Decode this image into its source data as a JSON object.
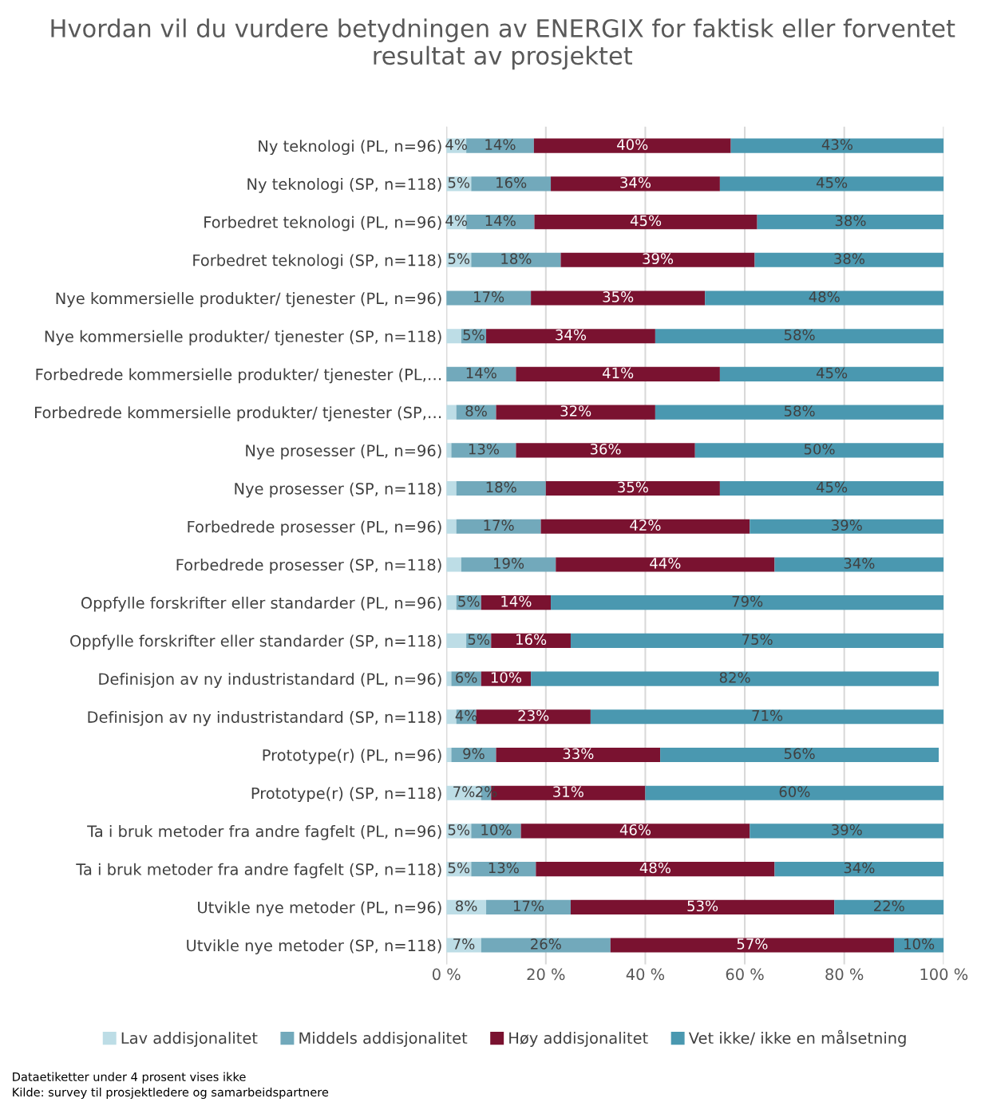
{
  "chart_data": {
    "type": "bar",
    "orientation": "horizontal",
    "stacked": true,
    "title": "Hvordan vil du vurdere betydningen av ENERGIX for faktisk eller forventet resultat av prosjektet",
    "categories": [
      "Ny teknologi (PL, n=96)",
      "Ny teknologi (SP, n=118)",
      "Forbedret teknologi (PL, n=96)",
      "Forbedret teknologi (SP, n=118)",
      "Nye kommersielle produkter/ tjenester (PL, n=96)",
      "Nye kommersielle produkter/ tjenester (SP, n=118)",
      "Forbedrede kommersielle produkter/ tjenester (PL,…",
      "Forbedrede kommersielle produkter/ tjenester (SP,…",
      "Nye prosesser (PL, n=96)",
      "Nye prosesser (SP, n=118)",
      "Forbedrede prosesser (PL, n=96)",
      "Forbedrede prosesser (SP, n=118)",
      "Oppfylle forskrifter eller standarder (PL, n=96)",
      "Oppfylle forskrifter eller standarder (SP, n=118)",
      "Definisjon av ny industristandard (PL, n=96)",
      "Definisjon av ny industristandard (SP, n=118)",
      "Prototype(r) (PL, n=96)",
      "Prototype(r) (SP, n=118)",
      "Ta i bruk metoder fra andre fagfelt (PL, n=96)",
      "Ta i bruk metoder fra andre fagfelt (SP, n=118)",
      "Utvikle nye metoder (PL, n=96)",
      "Utvikle nye metoder (SP, n=118)"
    ],
    "series": [
      {
        "name": "Lav addisjonalitet",
        "color": "#bddde6",
        "values": [
          4,
          5,
          4,
          5,
          0,
          3,
          0,
          2,
          1,
          2,
          2,
          3,
          2,
          4,
          1,
          2,
          1,
          7,
          5,
          5,
          8,
          7
        ],
        "value_labels": [
          "4%",
          "5%",
          "4%",
          "5%",
          null,
          null,
          null,
          null,
          null,
          null,
          null,
          null,
          null,
          null,
          null,
          null,
          null,
          "7%",
          "5%",
          "5%",
          "8%",
          "7%"
        ]
      },
      {
        "name": "Middels addisjonalitet",
        "color": "#72a9bb",
        "values": [
          13.6,
          16,
          13.7,
          18,
          17,
          5,
          14,
          8,
          13,
          18,
          17,
          19,
          5,
          5,
          6,
          4,
          9,
          2,
          10,
          13,
          17,
          26
        ],
        "value_labels": [
          "14%",
          "16%",
          "14%",
          "18%",
          "17%",
          "5%",
          "14%",
          "8%",
          "13%",
          "18%",
          "17%",
          "19%",
          "5%",
          "5%",
          "6%",
          "4%",
          "9%",
          "2%",
          "10%",
          "13%",
          "17%",
          "26%"
        ]
      },
      {
        "name": "Høy addisjonalitet",
        "color": "#7a1230",
        "values": [
          39.6,
          34,
          44.8,
          39,
          35,
          34,
          41,
          32,
          36,
          35,
          42,
          44,
          14,
          16,
          10,
          23,
          33,
          31,
          46,
          48,
          53,
          57
        ],
        "value_labels": [
          "40%",
          "34%",
          "45%",
          "39%",
          "35%",
          "34%",
          "41%",
          "32%",
          "36%",
          "35%",
          "42%",
          "44%",
          "14%",
          "16%",
          "10%",
          "23%",
          "33%",
          "31%",
          "46%",
          "48%",
          "53%",
          "57%"
        ]
      },
      {
        "name": "Vet ikke/ ikke en målsetning",
        "color": "#4a98b0",
        "values": [
          42.8,
          45,
          37.5,
          38,
          48,
          58,
          45,
          58,
          50,
          45,
          39,
          34,
          79,
          75,
          82,
          71,
          56,
          60,
          39,
          34,
          22,
          10
        ],
        "value_labels": [
          "43%",
          "45%",
          "38%",
          "38%",
          "48%",
          "58%",
          "45%",
          "58%",
          "50%",
          "45%",
          "39%",
          "34%",
          "79%",
          "75%",
          "82%",
          "71%",
          "56%",
          "60%",
          "39%",
          "34%",
          "22%",
          "10%"
        ]
      }
    ],
    "xlim": [
      0,
      100
    ],
    "xticks": [
      {
        "value": 0,
        "label": "0 %"
      },
      {
        "value": 20,
        "label": "20 %"
      },
      {
        "value": 40,
        "label": "40 %"
      },
      {
        "value": 60,
        "label": "60 %"
      },
      {
        "value": 80,
        "label": "80 %"
      },
      {
        "value": 100,
        "label": "100 %"
      }
    ],
    "grid": "x",
    "legend": "bottom",
    "annotations": [
      "Dataetiketter under 4 prosent vises ikke",
      "Kilde: survey til prosjektledere og samarbeidspartnere"
    ]
  }
}
